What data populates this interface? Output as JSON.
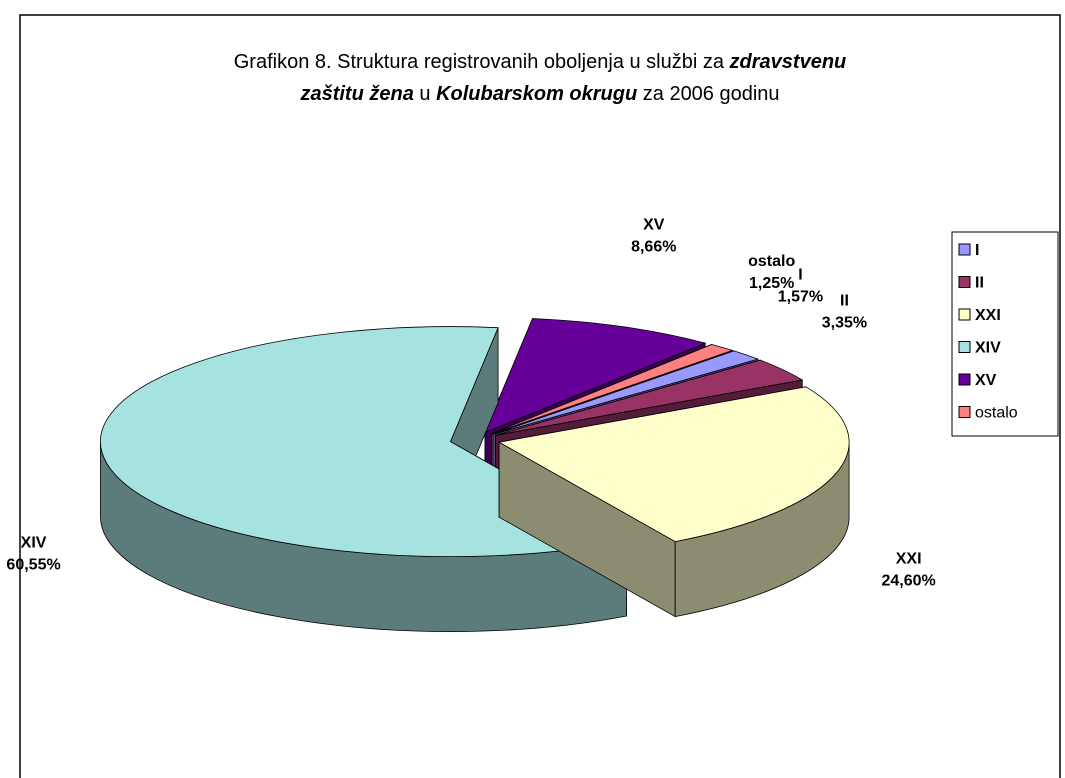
{
  "chart_data": {
    "type": "pie3d",
    "title": [
      "Grafikon 8. Struktura registrovanih oboljenja u službi za ",
      "zdravstvenu",
      "zaštitu žena",
      " u ",
      "Kolubarskom okrugu",
      " za 2006 godinu"
    ],
    "categories": [
      "I",
      "II",
      "XXI",
      "XIV",
      "XV",
      "ostalo"
    ],
    "values": [
      1.57,
      3.35,
      24.6,
      60.55,
      8.66,
      1.25
    ],
    "value_labels": [
      "1,57%",
      "3,35%",
      "24,60%",
      "60,55%",
      "8,66%",
      "1,25%"
    ],
    "colors": [
      "#9999ff",
      "#993366",
      "#ffffcc",
      "#a6e2e0",
      "#660099",
      "#ff8080"
    ],
    "legend": "right"
  }
}
